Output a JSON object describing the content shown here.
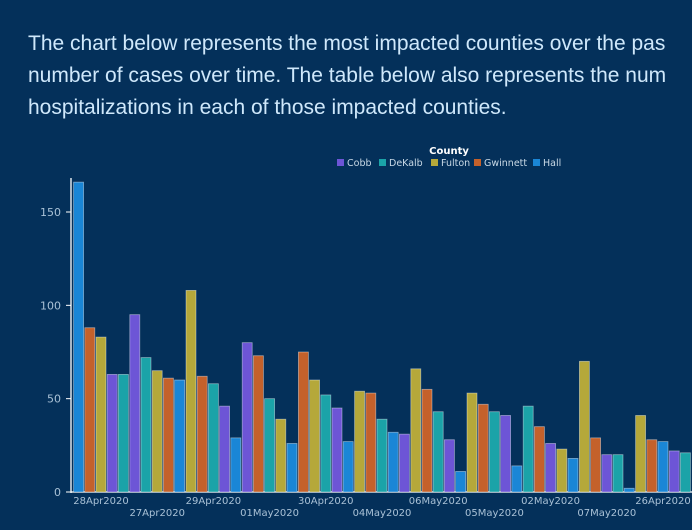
{
  "intro": {
    "line1": "The chart below represents the most impacted counties over the pas",
    "line2": "number of cases over time. The table below also represents the num",
    "line3": "hospitalizations in each of those impacted counties."
  },
  "chart_data": {
    "type": "bar",
    "legend_title": "County",
    "legend_placement": "top-center",
    "ylim": [
      0,
      170
    ],
    "yticks": [
      0,
      50,
      100,
      150
    ],
    "grid": false,
    "xlabel": "",
    "ylabel": "",
    "categories": [
      "28Apr2020",
      "27Apr2020",
      "29Apr2020",
      "01May2020",
      "30Apr2020",
      "04May2020",
      "06May2020",
      "05May2020",
      "02May2020",
      "07May2020",
      "26Apr2020"
    ],
    "series": [
      {
        "name": "Cobb",
        "color": "#6d55d6",
        "values": [
          63,
          95,
          46,
          80,
          45,
          31,
          28,
          41,
          26,
          20,
          22
        ]
      },
      {
        "name": "DeKalb",
        "color": "#1ba3a8",
        "values": [
          63,
          72,
          58,
          50,
          52,
          39,
          43,
          43,
          46,
          20,
          21
        ]
      },
      {
        "name": "Fulton",
        "color": "#b5a83a",
        "values": [
          83,
          65,
          108,
          39,
          60,
          54,
          66,
          53,
          23,
          70,
          41
        ]
      },
      {
        "name": "Gwinnett",
        "color": "#c4612b",
        "values": [
          88,
          61,
          62,
          73,
          75,
          53,
          55,
          47,
          35,
          29,
          28
        ]
      },
      {
        "name": "Hall",
        "color": "#1a86d6",
        "values": [
          166,
          60,
          29,
          26,
          27,
          32,
          11,
          14,
          18,
          2,
          27
        ]
      }
    ],
    "bar_order_per_group": [
      [
        "Hall",
        "Gwinnett",
        "Fulton",
        "Cobb",
        "DeKalb"
      ],
      [
        "Cobb",
        "DeKalb",
        "Fulton",
        "Gwinnett",
        "Hall"
      ],
      [
        "Fulton",
        "Gwinnett",
        "DeKalb",
        "Cobb",
        "Hall"
      ],
      [
        "Cobb",
        "Gwinnett",
        "DeKalb",
        "Fulton",
        "Hall"
      ],
      [
        "Gwinnett",
        "Fulton",
        "DeKalb",
        "Cobb",
        "Hall"
      ],
      [
        "Fulton",
        "Gwinnett",
        "DeKalb",
        "Hall",
        "Cobb"
      ],
      [
        "Fulton",
        "Gwinnett",
        "DeKalb",
        "Cobb",
        "Hall"
      ],
      [
        "Fulton",
        "Gwinnett",
        "DeKalb",
        "Cobb",
        "Hall"
      ],
      [
        "DeKalb",
        "Gwinnett",
        "Cobb",
        "Fulton",
        "Hall"
      ],
      [
        "Fulton",
        "Gwinnett",
        "Cobb",
        "DeKalb",
        "Hall"
      ],
      [
        "Fulton",
        "Gwinnett",
        "Hall",
        "Cobb",
        "DeKalb"
      ]
    ]
  }
}
